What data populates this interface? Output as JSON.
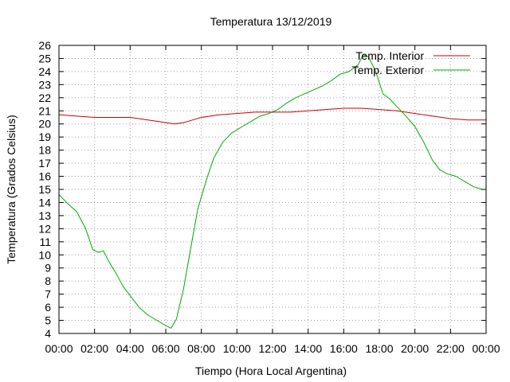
{
  "chart_data": {
    "type": "line",
    "title": "Temperatura 13/12/2019",
    "xlabel": "Tiempo (Hora Local Argentina)",
    "ylabel": "Temperatura (Grados Celsius)",
    "xlim": [
      0,
      24
    ],
    "ylim": [
      4,
      26
    ],
    "x_tick_labels": [
      "00:00",
      "02:00",
      "04:00",
      "06:00",
      "08:00",
      "10:00",
      "12:00",
      "14:00",
      "16:00",
      "18:00",
      "20:00",
      "22:00",
      "00:00"
    ],
    "y_ticks": [
      4,
      5,
      6,
      7,
      8,
      9,
      10,
      11,
      12,
      13,
      14,
      15,
      16,
      17,
      18,
      19,
      20,
      21,
      22,
      23,
      24,
      25,
      26
    ],
    "grid": true,
    "legend_position": "top-right",
    "series": [
      {
        "name": "Temp. Interior",
        "color": "#cc0000",
        "points": [
          [
            0,
            20.7
          ],
          [
            1,
            20.6
          ],
          [
            2,
            20.5
          ],
          [
            3,
            20.5
          ],
          [
            4,
            20.5
          ],
          [
            5,
            20.3
          ],
          [
            5.5,
            20.2
          ],
          [
            6,
            20.1
          ],
          [
            6.5,
            20.0
          ],
          [
            7,
            20.1
          ],
          [
            7.5,
            20.3
          ],
          [
            8,
            20.5
          ],
          [
            9,
            20.7
          ],
          [
            10,
            20.8
          ],
          [
            11,
            20.9
          ],
          [
            12,
            20.9
          ],
          [
            13,
            20.9
          ],
          [
            14,
            21.0
          ],
          [
            15,
            21.1
          ],
          [
            16,
            21.2
          ],
          [
            17,
            21.2
          ],
          [
            18,
            21.1
          ],
          [
            19,
            21.0
          ],
          [
            20,
            20.8
          ],
          [
            21,
            20.6
          ],
          [
            22,
            20.4
          ],
          [
            23,
            20.3
          ],
          [
            24,
            20.3
          ]
        ]
      },
      {
        "name": "Temp. Exterior",
        "color": "#00aa00",
        "points": [
          [
            0,
            14.6
          ],
          [
            0.5,
            13.9
          ],
          [
            1,
            13.3
          ],
          [
            1.5,
            12.0
          ],
          [
            1.9,
            10.4
          ],
          [
            2.2,
            10.2
          ],
          [
            2.5,
            10.3
          ],
          [
            2.8,
            9.5
          ],
          [
            3.2,
            8.6
          ],
          [
            3.6,
            7.6
          ],
          [
            4.0,
            6.9
          ],
          [
            4.5,
            6.0
          ],
          [
            5.0,
            5.4
          ],
          [
            5.5,
            5.0
          ],
          [
            6.0,
            4.6
          ],
          [
            6.3,
            4.4
          ],
          [
            6.6,
            5.1
          ],
          [
            7.0,
            7.4
          ],
          [
            7.4,
            10.5
          ],
          [
            7.8,
            13.5
          ],
          [
            8.3,
            15.8
          ],
          [
            8.7,
            17.4
          ],
          [
            9.2,
            18.6
          ],
          [
            9.7,
            19.3
          ],
          [
            10.3,
            19.8
          ],
          [
            10.8,
            20.2
          ],
          [
            11.3,
            20.6
          ],
          [
            11.8,
            20.8
          ],
          [
            12.3,
            21.1
          ],
          [
            12.8,
            21.6
          ],
          [
            13.3,
            22.0
          ],
          [
            13.8,
            22.3
          ],
          [
            14.3,
            22.6
          ],
          [
            14.8,
            22.9
          ],
          [
            15.3,
            23.3
          ],
          [
            15.8,
            23.8
          ],
          [
            16.3,
            24.0
          ],
          [
            16.8,
            24.5
          ],
          [
            17.1,
            25.3
          ],
          [
            17.4,
            25.1
          ],
          [
            17.8,
            24.0
          ],
          [
            18.2,
            22.3
          ],
          [
            18.6,
            21.9
          ],
          [
            19.0,
            21.3
          ],
          [
            19.5,
            20.6
          ],
          [
            20.0,
            19.8
          ],
          [
            20.5,
            18.6
          ],
          [
            21.0,
            17.2
          ],
          [
            21.4,
            16.5
          ],
          [
            21.8,
            16.2
          ],
          [
            22.3,
            16.0
          ],
          [
            22.8,
            15.6
          ],
          [
            23.3,
            15.2
          ],
          [
            23.8,
            15.0
          ],
          [
            24.0,
            15.0
          ]
        ]
      }
    ]
  }
}
